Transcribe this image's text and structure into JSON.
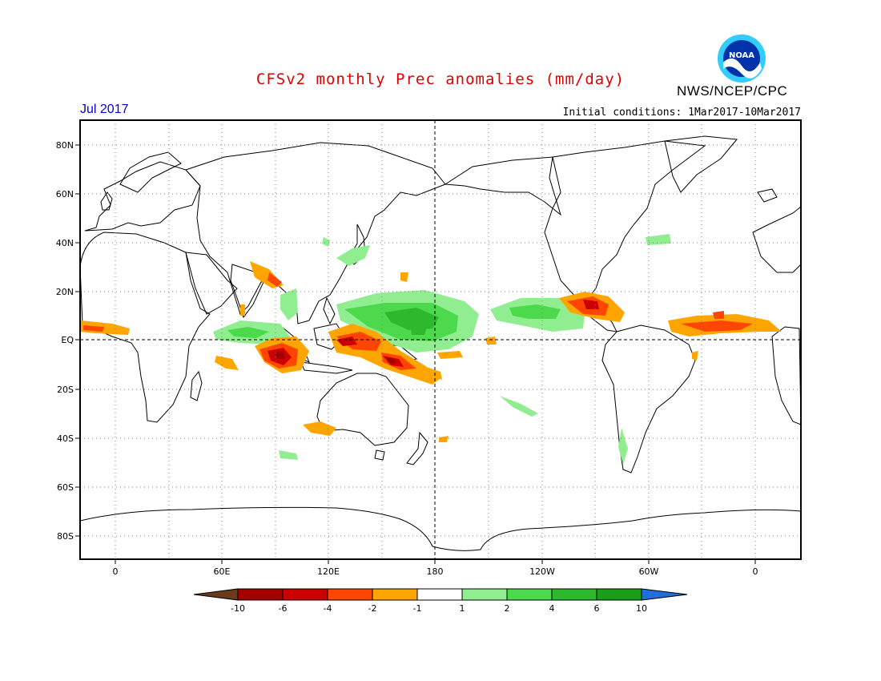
{
  "title": "CFSv2 monthly Prec anomalies (mm/day)",
  "agency": "NWS/NCEP/CPC",
  "logo_text": "NOAA",
  "month": "Jul 2017",
  "initial_conditions": "Initial conditions: 1Mar2017-10Mar2017",
  "lat_labels": [
    "80N",
    "60N",
    "40N",
    "20N",
    "EQ",
    "20S",
    "40S",
    "60S",
    "80S"
  ],
  "lon_labels": [
    "0",
    "60E",
    "120E",
    "180",
    "120W",
    "60W",
    "0"
  ],
  "colorbar": {
    "labels": [
      "-10",
      "-6",
      "-4",
      "-2",
      "-1",
      "1",
      "2",
      "4",
      "6",
      "10"
    ],
    "colors": [
      "#6b3a1e",
      "#a50000",
      "#cc0000",
      "#ff4500",
      "#ffa500",
      "#ffffff",
      "#90ee90",
      "#4cd94c",
      "#2eb82e",
      "#1a9e1a",
      "#1e6fd9"
    ]
  }
}
